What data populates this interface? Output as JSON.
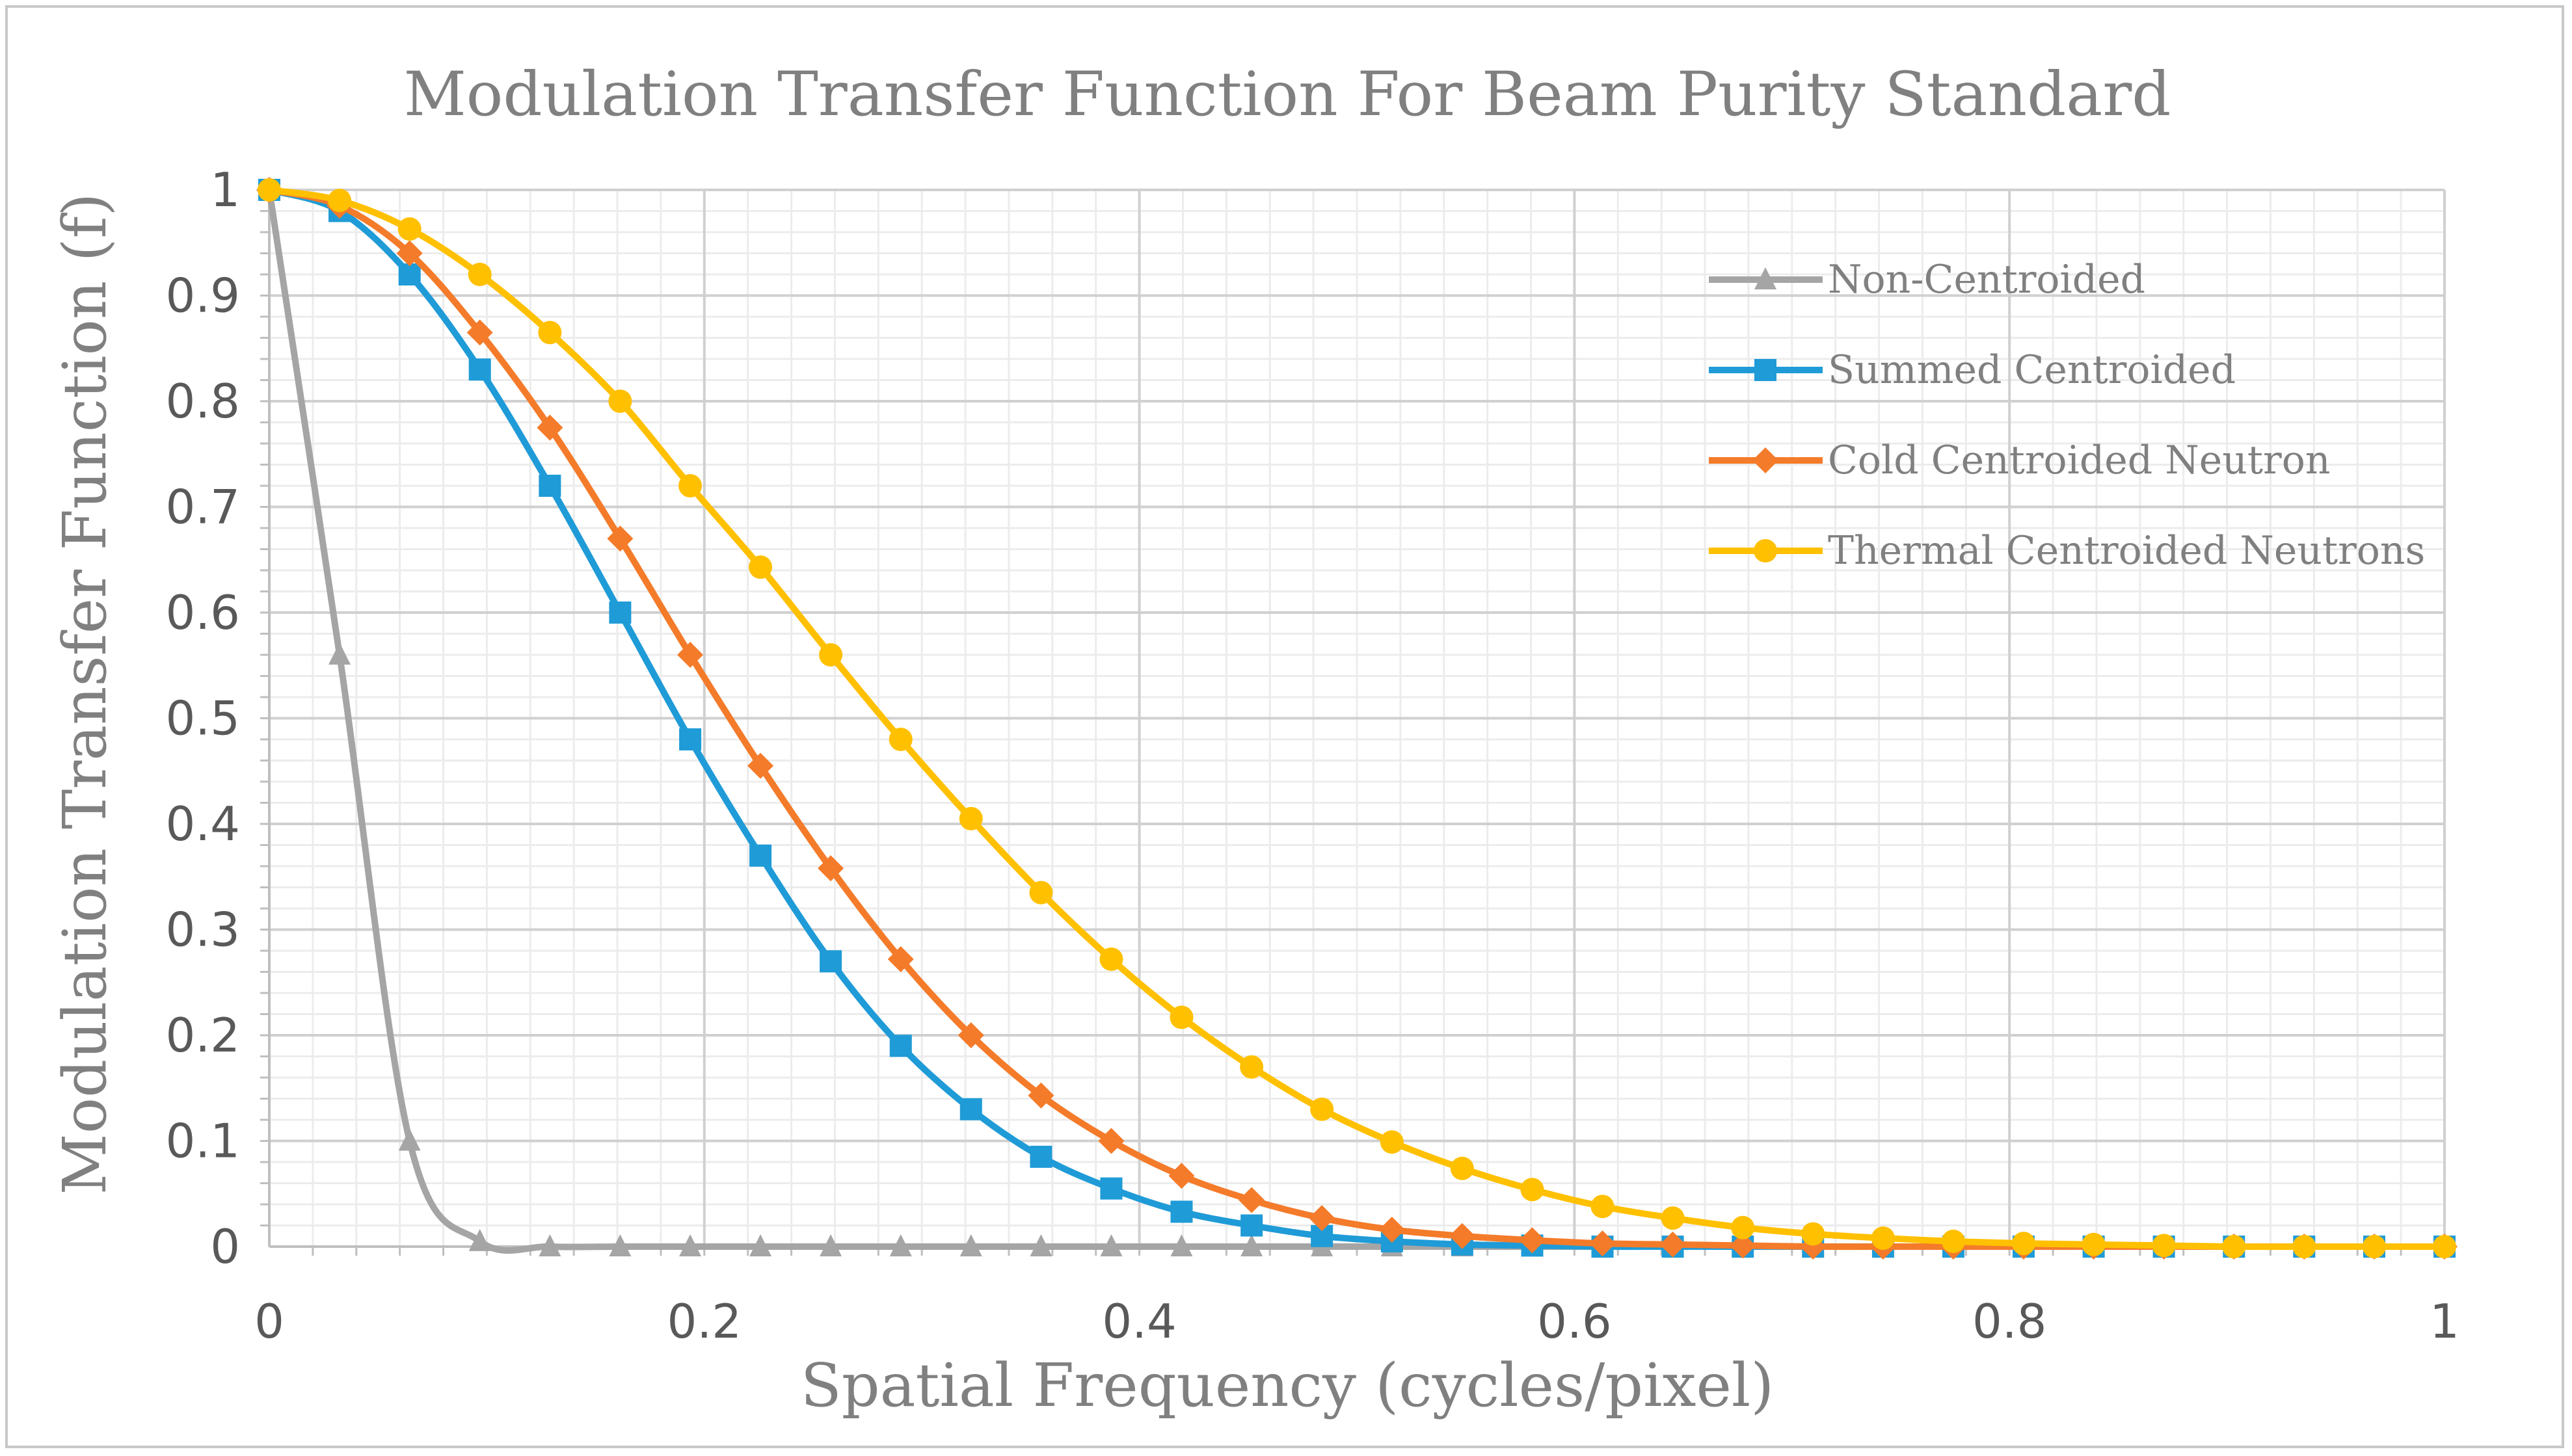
{
  "chart_data": {
    "type": "line",
    "title": "Modulation Transfer Function For Beam Purity Standard",
    "xlabel": "Spatial Frequency (cycles/pixel)",
    "ylabel": "Modulation Transfer Function (f)",
    "xlim": [
      0,
      1
    ],
    "ylim": [
      0,
      1
    ],
    "xticks": [
      "0",
      "0.2",
      "0.4",
      "0.6",
      "0.8",
      "1"
    ],
    "yticks": [
      "0",
      "0.1",
      "0.2",
      "0.3",
      "0.4",
      "0.5",
      "0.6",
      "0.7",
      "0.8",
      "0.9",
      "1"
    ],
    "grid": true,
    "legend_position": "top-right",
    "x": [
      0,
      0.0323,
      0.0645,
      0.0968,
      0.129,
      0.1613,
      0.1935,
      0.2258,
      0.2581,
      0.2903,
      0.3226,
      0.3548,
      0.3871,
      0.4194,
      0.4516,
      0.4839,
      0.5161,
      0.5484,
      0.5806,
      0.6129,
      0.6452,
      0.6774,
      0.7097,
      0.7419,
      0.7742,
      0.8065,
      0.8387,
      0.871,
      0.9032,
      0.9355,
      0.9677,
      1
    ],
    "series": [
      {
        "name": "Non-Centroided",
        "color": "#a5a5a5",
        "marker": "triangle",
        "values": [
          1,
          0.56,
          0.1,
          0.005,
          0,
          0,
          0,
          0,
          0,
          0,
          0,
          0,
          0,
          0,
          0,
          0,
          0,
          0,
          0,
          0,
          0,
          0,
          0,
          0,
          0,
          0,
          0,
          0,
          0,
          0,
          0,
          0
        ]
      },
      {
        "name": "Summed Centroided",
        "color": "#1f9bd7",
        "marker": "square",
        "values": [
          1,
          0.98,
          0.92,
          0.83,
          0.72,
          0.6,
          0.48,
          0.37,
          0.27,
          0.19,
          0.13,
          0.085,
          0.055,
          0.033,
          0.02,
          0.01,
          0.005,
          0.002,
          0.001,
          0,
          0,
          0,
          0,
          0,
          0,
          0,
          0,
          0,
          0,
          0,
          0,
          0
        ]
      },
      {
        "name": "Cold Centroided Neutron",
        "color": "#f47b2a",
        "marker": "diamond",
        "values": [
          1,
          0.985,
          0.94,
          0.865,
          0.775,
          0.67,
          0.56,
          0.455,
          0.358,
          0.272,
          0.2,
          0.143,
          0.1,
          0.067,
          0.044,
          0.027,
          0.016,
          0.01,
          0.006,
          0.003,
          0.002,
          0.001,
          0,
          0,
          0,
          0,
          0,
          0,
          0,
          0,
          0,
          0
        ]
      },
      {
        "name": "Thermal Centroided Neutrons",
        "color": "#ffc000",
        "marker": "circle",
        "values": [
          1,
          0.99,
          0.963,
          0.92,
          0.865,
          0.8,
          0.72,
          0.643,
          0.56,
          0.48,
          0.405,
          0.335,
          0.272,
          0.217,
          0.17,
          0.13,
          0.099,
          0.074,
          0.054,
          0.038,
          0.027,
          0.018,
          0.012,
          0.008,
          0.005,
          0.003,
          0.002,
          0.001,
          0,
          0,
          0,
          0
        ]
      }
    ]
  }
}
